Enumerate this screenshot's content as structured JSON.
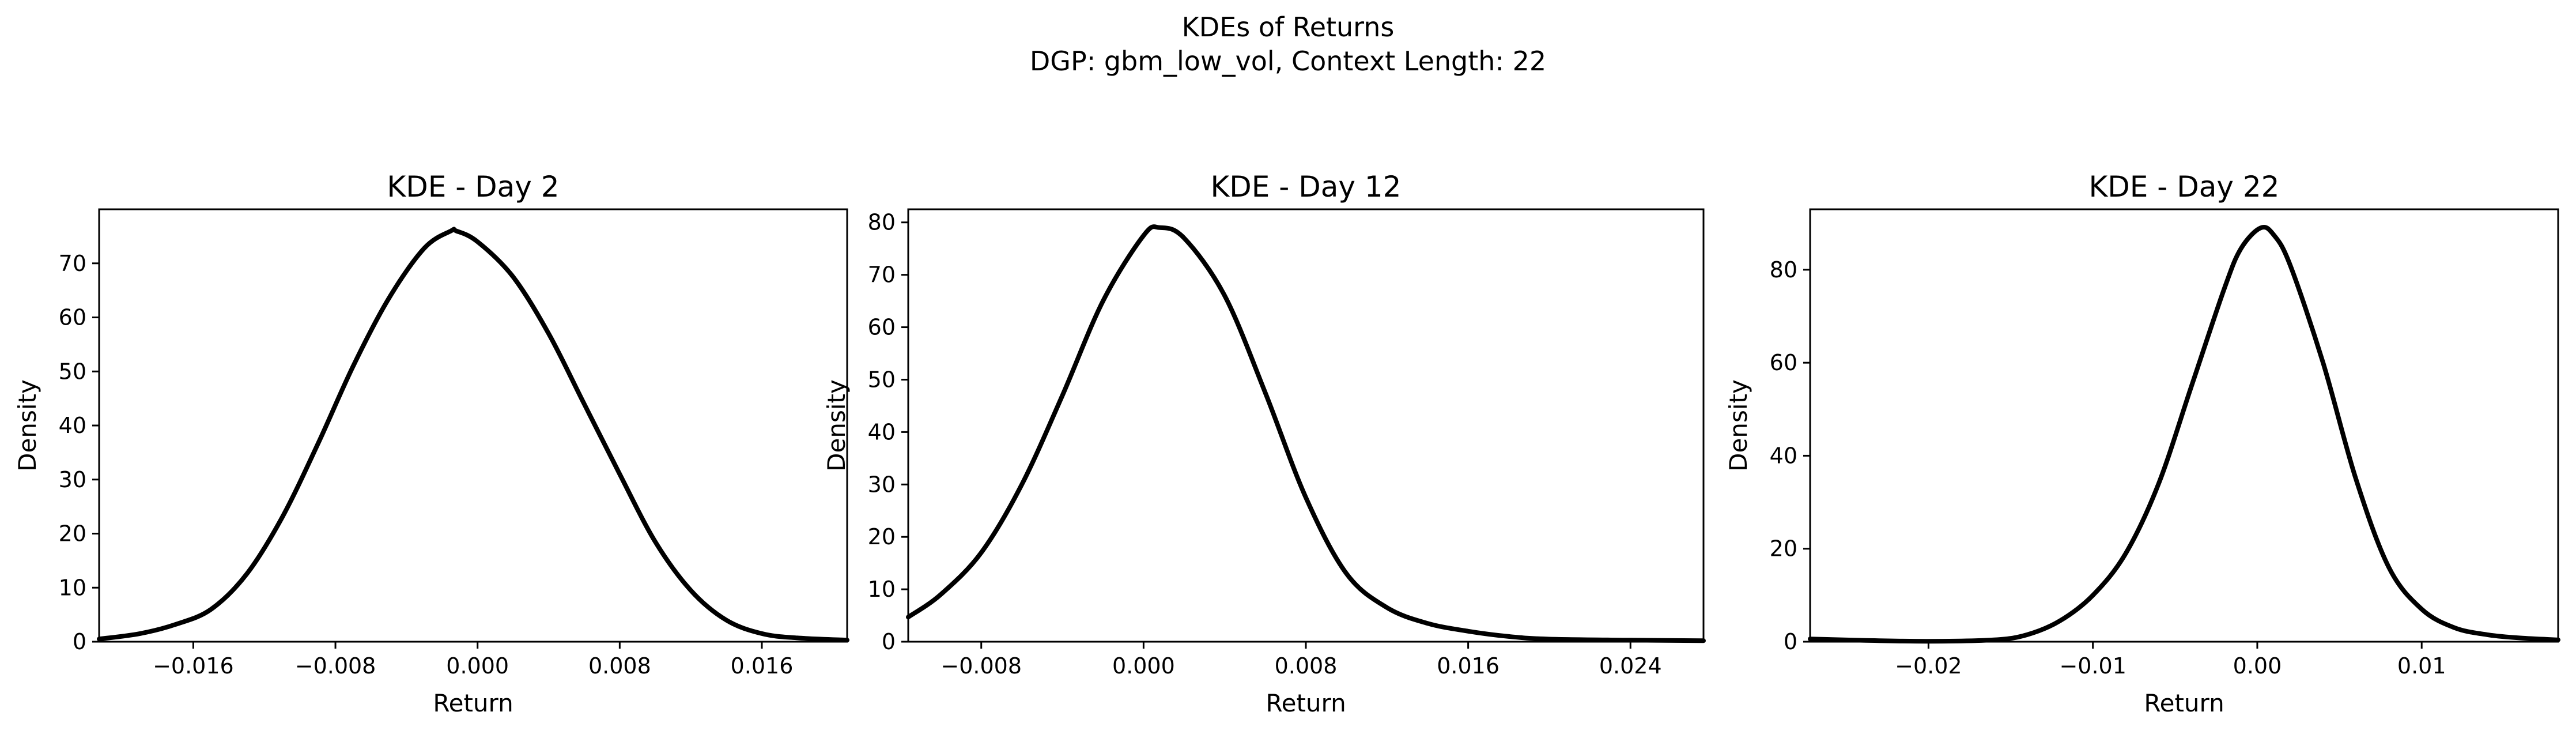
{
  "figure": {
    "suptitle_line1": "KDEs of Returns",
    "suptitle_line2": "DGP: gbm_low_vol, Context Length: 22"
  },
  "chart_data": [
    {
      "type": "line",
      "title": "KDE - Day 2",
      "xlabel": "Return",
      "ylabel": "Density",
      "xlim": [
        -0.0213,
        0.0208
      ],
      "ylim": [
        0,
        80
      ],
      "xticks": [
        -0.016,
        -0.008,
        0.0,
        0.008,
        0.016
      ],
      "xtick_labels": [
        "−0.016",
        "−0.008",
        "0.000",
        "0.008",
        "0.016"
      ],
      "yticks": [
        0,
        10,
        20,
        30,
        40,
        50,
        60,
        70
      ],
      "ytick_labels": [
        "0",
        "10",
        "20",
        "30",
        "40",
        "50",
        "60",
        "70"
      ],
      "grid": false,
      "color": "#000000",
      "series": [
        {
          "x": [
            -0.0213,
            -0.019,
            -0.017,
            -0.015,
            -0.013,
            -0.011,
            -0.009,
            -0.007,
            -0.005,
            -0.003,
            -0.0015,
            -0.0012,
            0.0,
            0.002,
            0.004,
            0.006,
            0.008,
            0.01,
            0.012,
            0.014,
            0.016,
            0.018,
            0.0208
          ],
          "y": [
            0.5,
            1.5,
            3.2,
            6.0,
            12.5,
            23.0,
            36.5,
            51.0,
            63.5,
            72.8,
            76.0,
            76.0,
            74.0,
            67.5,
            57.0,
            44.0,
            31.0,
            18.5,
            9.5,
            4.0,
            1.5,
            0.7,
            0.3
          ]
        }
      ]
    },
    {
      "type": "line",
      "title": "KDE - Day 12",
      "xlabel": "Return",
      "ylabel": "Density",
      "xlim": [
        -0.0116,
        0.0276
      ],
      "ylim": [
        0,
        82.5
      ],
      "xticks": [
        -0.008,
        0.0,
        0.008,
        0.016,
        0.024
      ],
      "xtick_labels": [
        "−0.008",
        "0.000",
        "0.008",
        "0.016",
        "0.024"
      ],
      "yticks": [
        0,
        10,
        20,
        30,
        40,
        50,
        60,
        70,
        80
      ],
      "ytick_labels": [
        "0",
        "10",
        "20",
        "30",
        "40",
        "50",
        "60",
        "70",
        "80"
      ],
      "grid": false,
      "color": "#000000",
      "series": [
        {
          "x": [
            -0.0116,
            -0.01,
            -0.008,
            -0.006,
            -0.004,
            -0.002,
            0.0,
            0.0008,
            0.002,
            0.004,
            0.006,
            0.008,
            0.01,
            0.012,
            0.014,
            0.016,
            0.018,
            0.02,
            0.024,
            0.0276
          ],
          "y": [
            4.7,
            9.0,
            17.0,
            30.0,
            47.0,
            65.0,
            77.5,
            79.0,
            77.0,
            66.0,
            47.5,
            27.5,
            13.0,
            6.5,
            3.5,
            2.0,
            1.0,
            0.5,
            0.3,
            0.2
          ]
        }
      ]
    },
    {
      "type": "line",
      "title": "KDE - Day 22",
      "xlabel": "Return",
      "ylabel": "Density",
      "xlim": [
        -0.0272,
        0.0183
      ],
      "ylim": [
        0,
        93
      ],
      "xticks": [
        -0.02,
        -0.01,
        0.0,
        0.01
      ],
      "xtick_labels": [
        "−0.02",
        "−0.01",
        "0.00",
        "0.01"
      ],
      "yticks": [
        0,
        20,
        40,
        60,
        80
      ],
      "ytick_labels": [
        "0",
        "20",
        "40",
        "60",
        "80"
      ],
      "grid": false,
      "color": "#000000",
      "series": [
        {
          "x": [
            -0.0272,
            -0.024,
            -0.02,
            -0.016,
            -0.014,
            -0.012,
            -0.01,
            -0.008,
            -0.006,
            -0.004,
            -0.002,
            -0.001,
            0.0002,
            0.001,
            0.002,
            0.004,
            0.006,
            0.008,
            0.01,
            0.012,
            0.014,
            0.016,
            0.0183
          ],
          "y": [
            0.6,
            0.3,
            0.1,
            0.4,
            1.5,
            4.5,
            10.0,
            19.0,
            34.0,
            55.0,
            76.0,
            84.5,
            89.0,
            87.5,
            81.0,
            60.0,
            35.0,
            16.0,
            7.0,
            3.0,
            1.5,
            0.8,
            0.4
          ]
        }
      ]
    }
  ]
}
